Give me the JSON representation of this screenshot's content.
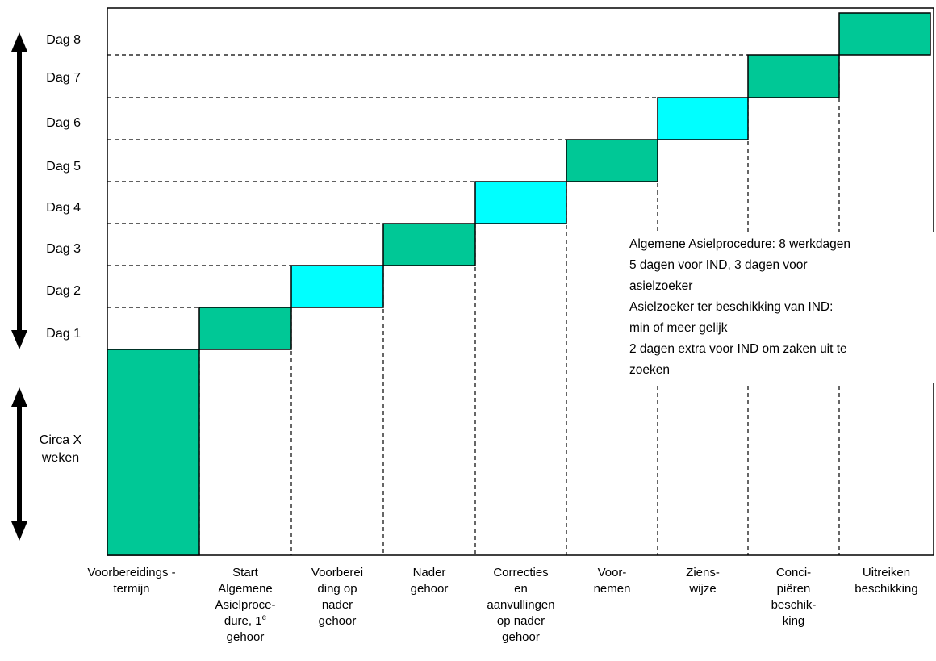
{
  "colors": {
    "dark_block": "#00C896",
    "light_block": "#00FFFF",
    "outline": "#000000"
  },
  "days": [
    "Dag 1",
    "Dag 2",
    "Dag 3",
    "Dag 4",
    "Dag 5",
    "Dag 6",
    "Dag 7",
    "Dag 8"
  ],
  "circa": {
    "line1": "Circa X",
    "line2": "weken"
  },
  "stages": [
    {
      "lines": [
        "Voorbereidings -",
        "termijn"
      ],
      "color": "dark"
    },
    {
      "lines": [
        "Start",
        "Algemene",
        "Asielproce-",
        "dure, 1",
        "gehoor"
      ],
      "sup": "e",
      "color": "dark"
    },
    {
      "lines": [
        "Voorberei",
        "ding op",
        "nader",
        "gehoor"
      ],
      "color": "light"
    },
    {
      "lines": [
        "Nader",
        "gehoor"
      ],
      "color": "dark"
    },
    {
      "lines": [
        "Correcties",
        "en",
        "aanvullingen",
        "op nader",
        "gehoor"
      ],
      "color": "light"
    },
    {
      "lines": [
        "Voor-",
        "nemen"
      ],
      "color": "dark"
    },
    {
      "lines": [
        "Ziens-",
        "wijze"
      ],
      "color": "light"
    },
    {
      "lines": [
        "Conci-",
        "piëren",
        "beschik-",
        "king"
      ],
      "color": "dark"
    },
    {
      "lines": [
        "Uitreiken",
        "beschikking"
      ],
      "color": "dark"
    }
  ],
  "note": [
    "Algemene Asielprocedure: 8 werkdagen",
    "5 dagen voor IND, 3 dagen voor",
    "asielzoeker",
    "Asielzoeker ter beschikking van IND:",
    "min of meer gelijk",
    "2 dagen extra voor IND om zaken uit te",
    "zoeken"
  ]
}
